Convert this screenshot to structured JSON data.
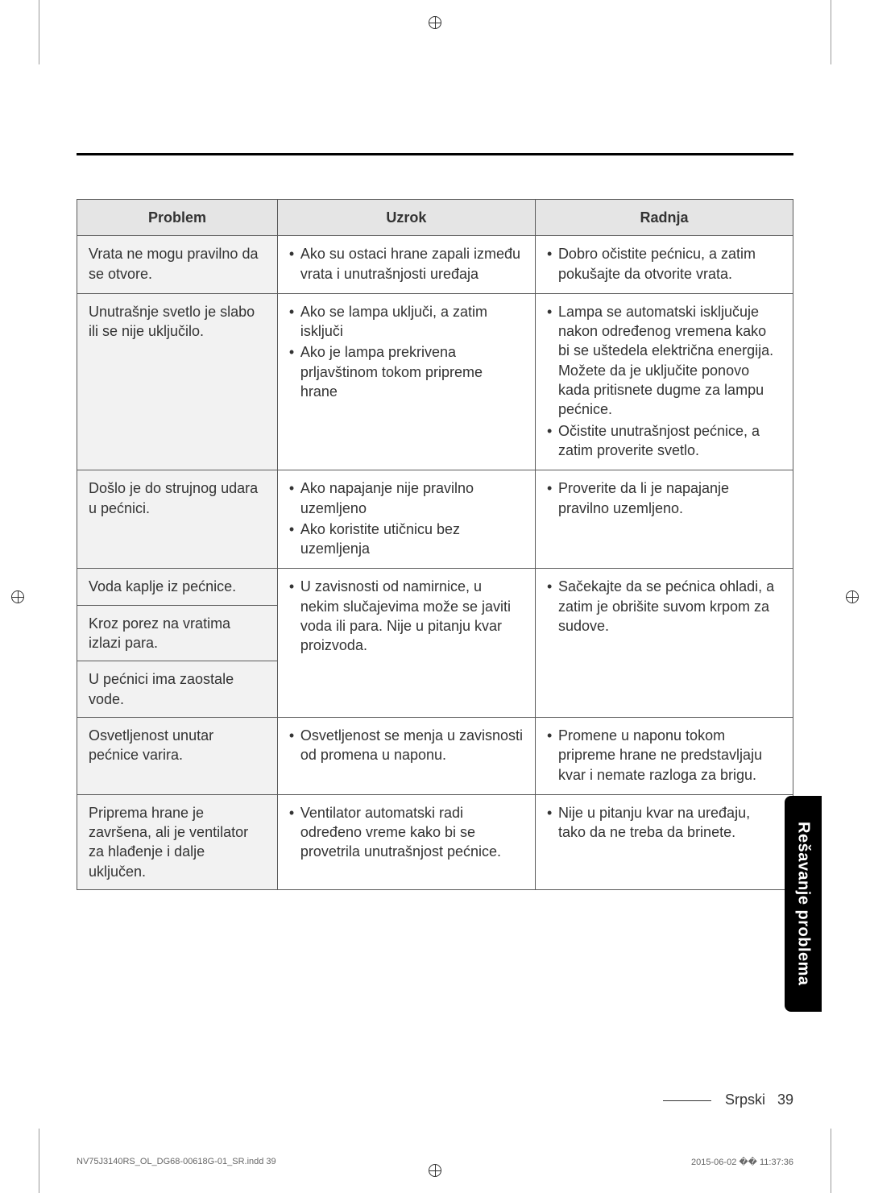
{
  "headers": {
    "problem": "Problem",
    "uzrok": "Uzrok",
    "radnja": "Radnja"
  },
  "rows": {
    "r1": {
      "problem": "Vrata ne mogu pravilno da se otvore.",
      "uzrok1": "Ako su ostaci hrane zapali između vrata i unutrašnjosti uređaja",
      "radnja1": "Dobro očistite pećnicu, a zatim pokušajte da otvorite vrata."
    },
    "r2": {
      "problem": "Unutrašnje svetlo je slabo ili se nije uključilo.",
      "uzrok1": "Ako se lampa uključi, a zatim isključi",
      "uzrok2": "Ako je lampa prekrivena prljavštinom tokom pripreme hrane",
      "radnja1": "Lampa se automatski isključuje nakon određenog vremena kako bi se uštedela električna energija. Možete da je uključite ponovo kada pritisnete dugme za lampu pećnice.",
      "radnja2": "Očistite unutrašnjost pećnice, a zatim proverite svetlo."
    },
    "r3": {
      "problem": "Došlo je do strujnog udara u pećnici.",
      "uzrok1": "Ako napajanje nije pravilno uzemljeno",
      "uzrok2": "Ako koristite utičnicu bez uzemljenja",
      "radnja1": "Proverite da li je napajanje pravilno uzemljeno."
    },
    "r4a": {
      "problem": "Voda kaplje iz pećnice."
    },
    "r4b": {
      "problem": "Kroz porez na vratima izlazi para."
    },
    "r4c": {
      "problem": "U pećnici ima zaostale vode."
    },
    "r4": {
      "uzrok1": "U zavisnosti od namirnice, u nekim slučajevima može se javiti voda ili para. Nije u pitanju kvar proizvoda.",
      "radnja1": "Sačekajte da se pećnica ohladi, a zatim je obrišite suvom krpom za sudove."
    },
    "r5": {
      "problem": "Osvetljenost unutar pećnice varira.",
      "uzrok1": "Osvetljenost se menja u zavisnosti od promena u naponu.",
      "radnja1": "Promene u naponu tokom pripreme hrane ne predstavljaju kvar i nemate razloga za brigu."
    },
    "r6": {
      "problem": "Priprema hrane je završena, ali je ventilator za hlađenje i dalje uključen.",
      "uzrok1": "Ventilator automatski radi određeno vreme kako bi se provetrila unutrašnjost pećnice.",
      "radnja1": "Nije u pitanju kvar na uređaju, tako da ne treba da brinete."
    }
  },
  "sideTab": "Rešavanje problema",
  "footer": {
    "lang": "Srpski",
    "page": "39"
  },
  "imprint": {
    "file": "NV75J3140RS_OL_DG68-00618G-01_SR.indd   39",
    "stamp": "2015-06-02   �� 11:37:36"
  }
}
